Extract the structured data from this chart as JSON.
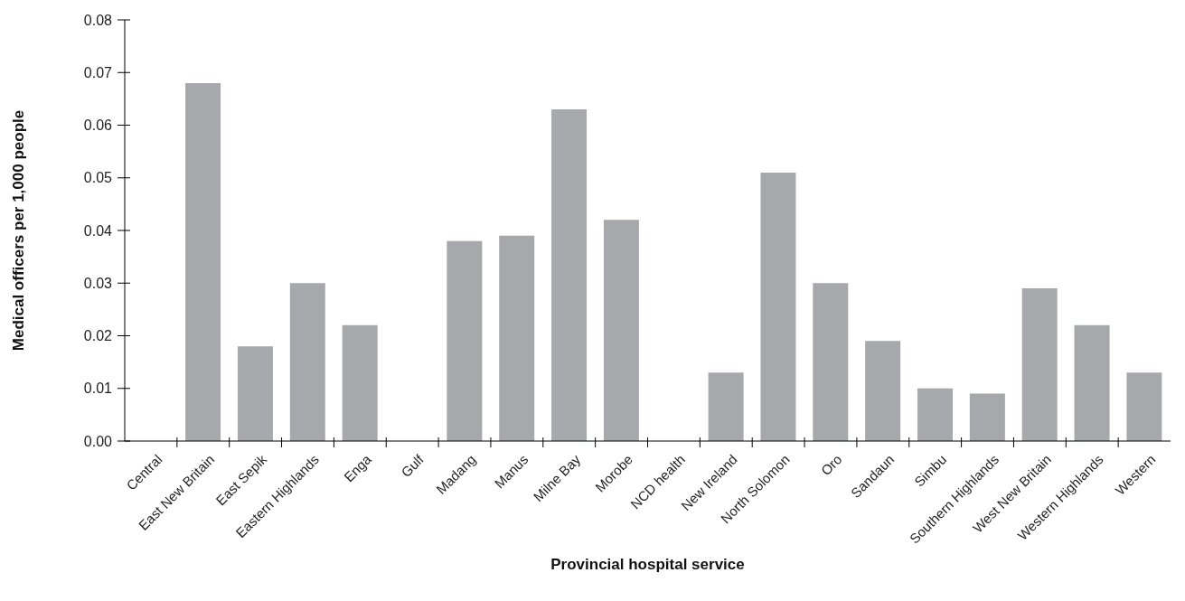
{
  "chart_data": {
    "type": "bar",
    "xlabel": "Provincial hospital service",
    "ylabel": "Medical officers per 1,000 people",
    "categories": [
      "Central",
      "East New Britain",
      "East Sepik",
      "Eastern Highlands",
      "Enga",
      "Gulf",
      "Madang",
      "Manus",
      "Milne Bay",
      "Morobe",
      "NCD health",
      "New Ireland",
      "North Solomon",
      "Oro",
      "Sandaun",
      "Simbu",
      "Southern Highlands",
      "West New Britain",
      "Western Highlands",
      "Western"
    ],
    "values": [
      0,
      0.068,
      0.018,
      0.03,
      0.022,
      0,
      0.038,
      0.039,
      0.063,
      0.042,
      0,
      0.013,
      0.051,
      0.03,
      0.019,
      0.01,
      0.009,
      0.029,
      0.022,
      0.013
    ],
    "color": "#a7a8ab",
    "ylim": [
      0,
      0.08
    ],
    "yticks": [
      {
        "value": 0,
        "label": "0.00"
      },
      {
        "value": 0.01,
        "label": "0.01"
      },
      {
        "value": 0.02,
        "label": "0.02"
      },
      {
        "value": 0.03,
        "label": "0.03"
      },
      {
        "value": 0.04,
        "label": "0.04"
      },
      {
        "value": 0.05,
        "label": "0.05"
      },
      {
        "value": 0.06,
        "label": "0.06"
      },
      {
        "value": 0.07,
        "label": "0.07"
      },
      {
        "value": 0.08,
        "label": "0.08"
      }
    ],
    "grid": false,
    "legend": false
  }
}
